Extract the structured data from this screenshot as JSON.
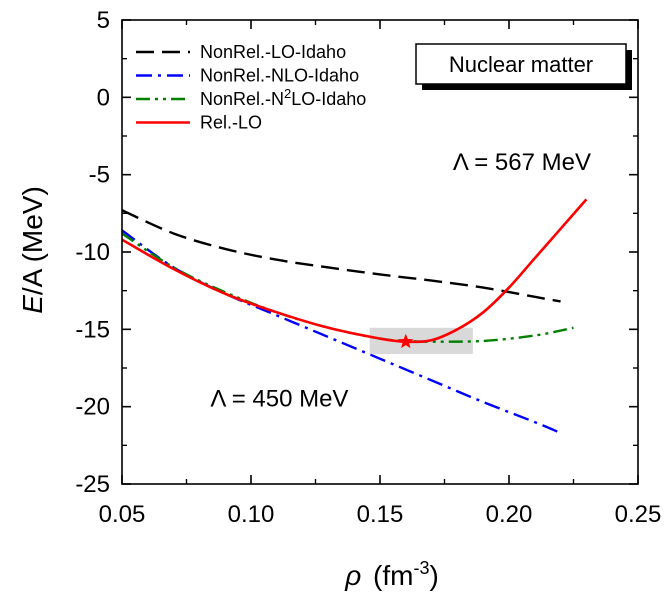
{
  "chart_data": {
    "type": "line",
    "xlabel_symbol": "ρ",
    "xlabel_unit": "(fm",
    "xlabel_exp": "-3",
    "xlabel_close": ")",
    "ylabel_italic": "E",
    "ylabel_rest": "/A (MeV)",
    "xlim": [
      0.05,
      0.25
    ],
    "ylim": [
      -25,
      5
    ],
    "xticks": [
      0.05,
      0.1,
      0.15,
      0.2,
      0.25
    ],
    "xtick_labels": [
      "0.05",
      "0.10",
      "0.15",
      "0.20",
      "0.25"
    ],
    "yticks": [
      5,
      0,
      -5,
      -10,
      -15,
      -20,
      -25
    ],
    "ytick_labels": [
      "5",
      "0",
      "-5",
      "-10",
      "-15",
      "-20",
      "-25"
    ],
    "box_label": "Nuclear matter",
    "annotations": [
      {
        "id": "lambda567",
        "text": "Λ = 567 MeV",
        "x": 0.205,
        "y": -4.7
      },
      {
        "id": "lambda450",
        "text": "Λ = 450 MeV",
        "x": 0.111,
        "y": -20.0
      }
    ],
    "saturation_region": {
      "x": [
        0.146,
        0.186
      ],
      "y": [
        -16.6,
        -14.9
      ],
      "color": "#d9d9d9"
    },
    "saturation_point": {
      "x": 0.16,
      "y": -15.8,
      "color": "#ff0000"
    },
    "legend_position": "top-left",
    "series": [
      {
        "name": "NonRel.-LO-Idaho",
        "legend_parts": [
          "NonRel.-LO-Idaho"
        ],
        "color": "#000000",
        "dash": "dash",
        "x": [
          0.05,
          0.07,
          0.09,
          0.11,
          0.13,
          0.15,
          0.17,
          0.19,
          0.21,
          0.22
        ],
        "y": [
          -7.3,
          -8.8,
          -9.8,
          -10.5,
          -11.0,
          -11.45,
          -11.85,
          -12.3,
          -12.9,
          -13.2
        ]
      },
      {
        "name": "NonRel.-NLO-Idaho",
        "legend_parts": [
          "NonRel.-NLO-Idaho"
        ],
        "color": "#0000ff",
        "dash": "dashdot",
        "x": [
          0.05,
          0.07,
          0.09,
          0.11,
          0.13,
          0.15,
          0.17,
          0.19,
          0.21,
          0.22
        ],
        "y": [
          -8.6,
          -11.0,
          -12.7,
          -14.1,
          -15.5,
          -16.9,
          -18.3,
          -19.7,
          -21.0,
          -21.7
        ]
      },
      {
        "name": "NonRel.-N2LO-Idaho",
        "legend_parts": [
          "NonRel.-N",
          "2",
          "LO-Idaho"
        ],
        "color": "#008000",
        "dash": "dashdotdot",
        "x": [
          0.05,
          0.07,
          0.09,
          0.11,
          0.13,
          0.15,
          0.16,
          0.17,
          0.19,
          0.21,
          0.225
        ],
        "y": [
          -8.8,
          -11.0,
          -12.6,
          -13.9,
          -14.9,
          -15.6,
          -15.75,
          -15.8,
          -15.75,
          -15.4,
          -14.9
        ]
      },
      {
        "name": "Rel.-LO",
        "legend_parts": [
          "Rel.-LO"
        ],
        "color": "#ff0000",
        "dash": "solid",
        "x": [
          0.05,
          0.07,
          0.09,
          0.11,
          0.13,
          0.15,
          0.16,
          0.17,
          0.18,
          0.19,
          0.2,
          0.21,
          0.22,
          0.23
        ],
        "y": [
          -9.2,
          -11.1,
          -12.7,
          -13.9,
          -14.9,
          -15.6,
          -15.8,
          -15.7,
          -15.0,
          -13.9,
          -12.3,
          -10.4,
          -8.5,
          -6.6
        ]
      }
    ]
  }
}
